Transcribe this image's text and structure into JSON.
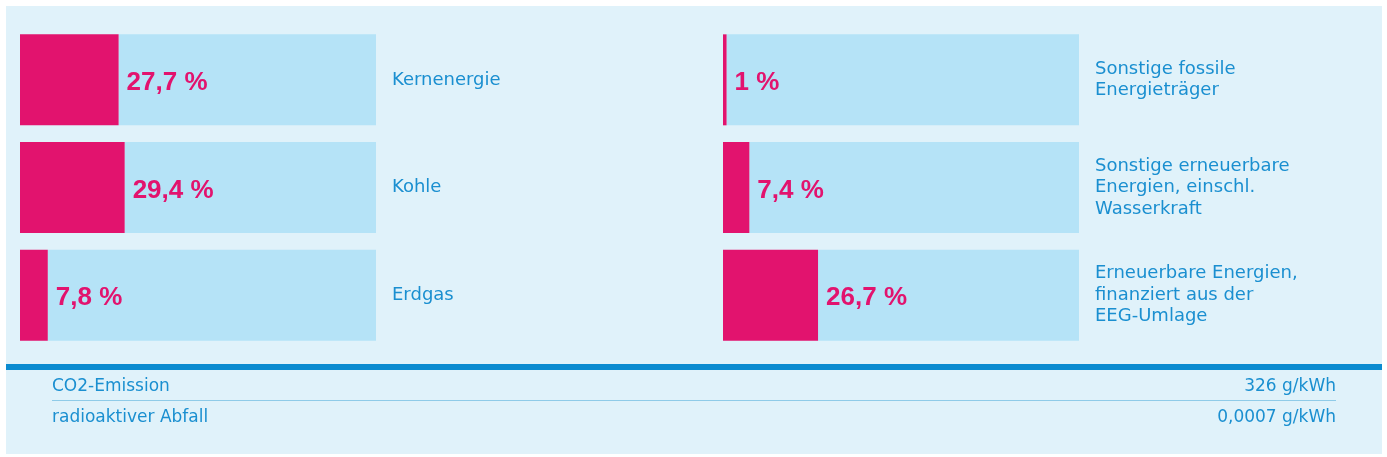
{
  "chart_data": [
    {
      "type": "bar",
      "orientation": "horizontal",
      "stacked": true,
      "categories": [
        "Kernenergie",
        "Kohle",
        "Erdgas"
      ],
      "series": [
        {
          "color": "#e2136e",
          "values": [
            27.7,
            29.4,
            7.8
          ],
          "value_labels": [
            "27,7 %",
            "29,4 %",
            "7,8 %"
          ]
        },
        {
          "color": "#b5e3f7",
          "values": [
            72.3,
            70.6,
            92.2
          ]
        }
      ],
      "xlim": [
        0,
        100
      ],
      "tick_labels": "y",
      "grid": false,
      "legend": false
    },
    {
      "type": "bar",
      "orientation": "horizontal",
      "stacked": true,
      "categories": [
        "Sonstige fossile Energieträger",
        "Sonstige erneuerbare Energien, einschl. Wasserkraft",
        "Erneuerbare Energien, finanziert aus der EEG-Umlage"
      ],
      "series": [
        {
          "color": "#e2136e",
          "values": [
            1,
            7.4,
            26.7
          ],
          "value_labels": [
            "1 %",
            "7,4 %",
            "26,7 %"
          ]
        },
        {
          "color": "#b5e3f7",
          "values": [
            99,
            92.6,
            73.3
          ]
        }
      ],
      "xlim": [
        0,
        100
      ],
      "tick_labels": "y",
      "grid": false,
      "legend": false
    },
    {
      "type": "other",
      "annotations": [
        "CO2-Emission",
        "326 g/kWh",
        "radioaktiver Abfall",
        "0,0007 g/kWh"
      ]
    }
  ]
}
